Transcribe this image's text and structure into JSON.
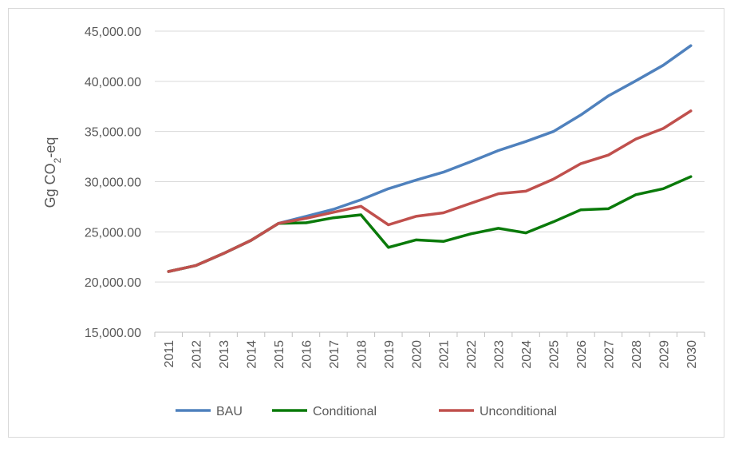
{
  "chart_data": {
    "type": "line",
    "ylabel": "Gg CO2-eq",
    "ylabel_main": "Gg CO",
    "ylabel_sub": "2",
    "ylabel_tail": "-eq",
    "ylim": [
      15000,
      45000
    ],
    "yticks": [
      15000,
      20000,
      25000,
      30000,
      35000,
      40000,
      45000
    ],
    "ytick_labels": [
      "15,000.00",
      "20,000.00",
      "25,000.00",
      "30,000.00",
      "35,000.00",
      "40,000.00",
      "45,000.00"
    ],
    "grid": true,
    "legend_position": "bottom",
    "categories": [
      "2011",
      "2012",
      "2013",
      "2014",
      "2015",
      "2016",
      "2017",
      "2018",
      "2019",
      "2020",
      "2021",
      "2022",
      "2023",
      "2024",
      "2025",
      "2026",
      "2027",
      "2028",
      "2029",
      "2030"
    ],
    "series": [
      {
        "name": "BAU",
        "color": "#4f81bd",
        "values": [
          21050,
          21650,
          22850,
          24150,
          25850,
          26550,
          27250,
          28200,
          29300,
          30150,
          30950,
          32000,
          33100,
          34000,
          35000,
          36650,
          38550,
          40050,
          41600,
          43550
        ]
      },
      {
        "name": "Conditional",
        "color": "#0a7a0a",
        "values": [
          21050,
          21650,
          22850,
          24150,
          25850,
          25900,
          26400,
          26700,
          23450,
          24200,
          24050,
          24800,
          25350,
          24900,
          26000,
          27200,
          27300,
          28700,
          29300,
          30500
        ]
      },
      {
        "name": "Unconditional",
        "color": "#c0504d",
        "values": [
          21050,
          21650,
          22850,
          24150,
          25850,
          26350,
          26950,
          27550,
          25700,
          26550,
          26900,
          27850,
          28800,
          29050,
          30250,
          31800,
          32650,
          34250,
          35300,
          37050
        ]
      }
    ]
  }
}
